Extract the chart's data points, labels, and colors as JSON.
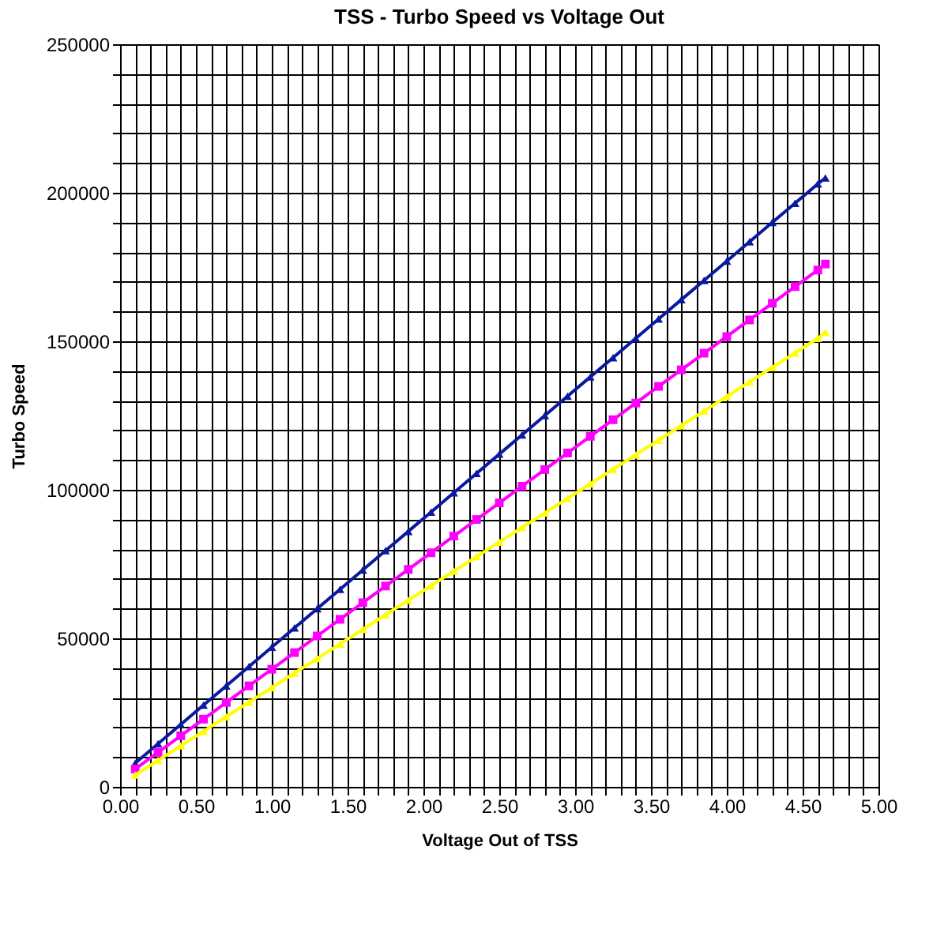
{
  "chart_data": {
    "type": "line",
    "title": "TSS - Turbo Speed vs Voltage Out",
    "xlabel": "Voltage Out of TSS",
    "ylabel": "Turbo Speed",
    "x": [
      0.1,
      0.25,
      0.4,
      0.55,
      0.7,
      0.85,
      1.0,
      1.15,
      1.3,
      1.45,
      1.6,
      1.75,
      1.9,
      2.05,
      2.2,
      2.35,
      2.5,
      2.65,
      2.8,
      2.95,
      3.1,
      3.25,
      3.4,
      3.55,
      3.7,
      3.85,
      4.0,
      4.15,
      4.3,
      4.45,
      4.6,
      4.65
    ],
    "series": [
      {
        "color": "#0a1aa0",
        "marker": "triangle",
        "values": [
          8000,
          14500,
          21000,
          27500,
          34000,
          40500,
          47000,
          53500,
          60000,
          66500,
          73000,
          79500,
          86000,
          92500,
          99000,
          105500,
          112000,
          118500,
          125000,
          131500,
          138000,
          144500,
          151000,
          157500,
          164000,
          170500,
          177000,
          183500,
          190000,
          196500,
          203000,
          205000
        ]
      },
      {
        "color": "#ff00ff",
        "marker": "square",
        "values": [
          6000,
          11600,
          17200,
          22800,
          28400,
          34000,
          39600,
          45200,
          50800,
          56400,
          62000,
          67600,
          73200,
          78800,
          84400,
          90000,
          95600,
          101200,
          106800,
          112400,
          118000,
          123600,
          129200,
          134800,
          140400,
          146000,
          151600,
          157200,
          162800,
          168400,
          174000,
          176000
        ]
      },
      {
        "color": "#ffff00",
        "marker": "triangle",
        "values": [
          4000,
          8900,
          13800,
          18700,
          23600,
          28500,
          33400,
          38300,
          43200,
          48100,
          53000,
          57900,
          62800,
          67700,
          72600,
          77500,
          82400,
          87300,
          92200,
          97100,
          102000,
          106900,
          111800,
          116700,
          121600,
          126500,
          131400,
          136300,
          141200,
          146100,
          151000,
          153000
        ]
      }
    ],
    "xlim": [
      0,
      5
    ],
    "xticks": [
      {
        "value": 0,
        "label": "0.00"
      },
      {
        "value": 0.1,
        "label": null
      },
      {
        "value": 0.2,
        "label": null
      },
      {
        "value": 0.3,
        "label": null
      },
      {
        "value": 0.4,
        "label": null
      },
      {
        "value": 0.5,
        "label": "0.50"
      },
      {
        "value": 0.6,
        "label": null
      },
      {
        "value": 0.7,
        "label": null
      },
      {
        "value": 0.8,
        "label": null
      },
      {
        "value": 0.9,
        "label": null
      },
      {
        "value": 1,
        "label": "1.00"
      },
      {
        "value": 1.1,
        "label": null
      },
      {
        "value": 1.2,
        "label": null
      },
      {
        "value": 1.3,
        "label": null
      },
      {
        "value": 1.4,
        "label": null
      },
      {
        "value": 1.5,
        "label": "1.50"
      },
      {
        "value": 1.6,
        "label": null
      },
      {
        "value": 1.7,
        "label": null
      },
      {
        "value": 1.8,
        "label": null
      },
      {
        "value": 1.9,
        "label": null
      },
      {
        "value": 2,
        "label": "2.00"
      },
      {
        "value": 2.1,
        "label": null
      },
      {
        "value": 2.2,
        "label": null
      },
      {
        "value": 2.3,
        "label": null
      },
      {
        "value": 2.4,
        "label": null
      },
      {
        "value": 2.5,
        "label": "2.50"
      },
      {
        "value": 2.6,
        "label": null
      },
      {
        "value": 2.7,
        "label": null
      },
      {
        "value": 2.8,
        "label": null
      },
      {
        "value": 2.9,
        "label": null
      },
      {
        "value": 3,
        "label": "3.00"
      },
      {
        "value": 3.1,
        "label": null
      },
      {
        "value": 3.2,
        "label": null
      },
      {
        "value": 3.3,
        "label": null
      },
      {
        "value": 3.4,
        "label": null
      },
      {
        "value": 3.5,
        "label": "3.50"
      },
      {
        "value": 3.6,
        "label": null
      },
      {
        "value": 3.7,
        "label": null
      },
      {
        "value": 3.8,
        "label": null
      },
      {
        "value": 3.9,
        "label": null
      },
      {
        "value": 4,
        "label": "4.00"
      },
      {
        "value": 4.1,
        "label": null
      },
      {
        "value": 4.2,
        "label": null
      },
      {
        "value": 4.3,
        "label": null
      },
      {
        "value": 4.4,
        "label": null
      },
      {
        "value": 4.5,
        "label": "4.50"
      },
      {
        "value": 4.6,
        "label": null
      },
      {
        "value": 4.7,
        "label": null
      },
      {
        "value": 4.8,
        "label": null
      },
      {
        "value": 4.9,
        "label": null
      },
      {
        "value": 5,
        "label": "5.00"
      }
    ],
    "ylim": [
      0,
      250000
    ],
    "yticks": [
      0,
      {
        "value": 10000,
        "label": null
      },
      {
        "value": 20000,
        "label": null
      },
      {
        "value": 30000,
        "label": null
      },
      {
        "value": 40000,
        "label": null
      },
      50000,
      {
        "value": 60000,
        "label": null
      },
      {
        "value": 70000,
        "label": null
      },
      {
        "value": 80000,
        "label": null
      },
      {
        "value": 90000,
        "label": null
      },
      100000,
      {
        "value": 110000,
        "label": null
      },
      {
        "value": 120000,
        "label": null
      },
      {
        "value": 130000,
        "label": null
      },
      {
        "value": 140000,
        "label": null
      },
      150000,
      {
        "value": 160000,
        "label": null
      },
      {
        "value": 170000,
        "label": null
      },
      {
        "value": 180000,
        "label": null
      },
      {
        "value": 190000,
        "label": null
      },
      200000,
      {
        "value": 210000,
        "label": null
      },
      {
        "value": 220000,
        "label": null
      },
      {
        "value": 230000,
        "label": null
      },
      {
        "value": 240000,
        "label": null
      },
      250000
    ],
    "grid": true
  }
}
